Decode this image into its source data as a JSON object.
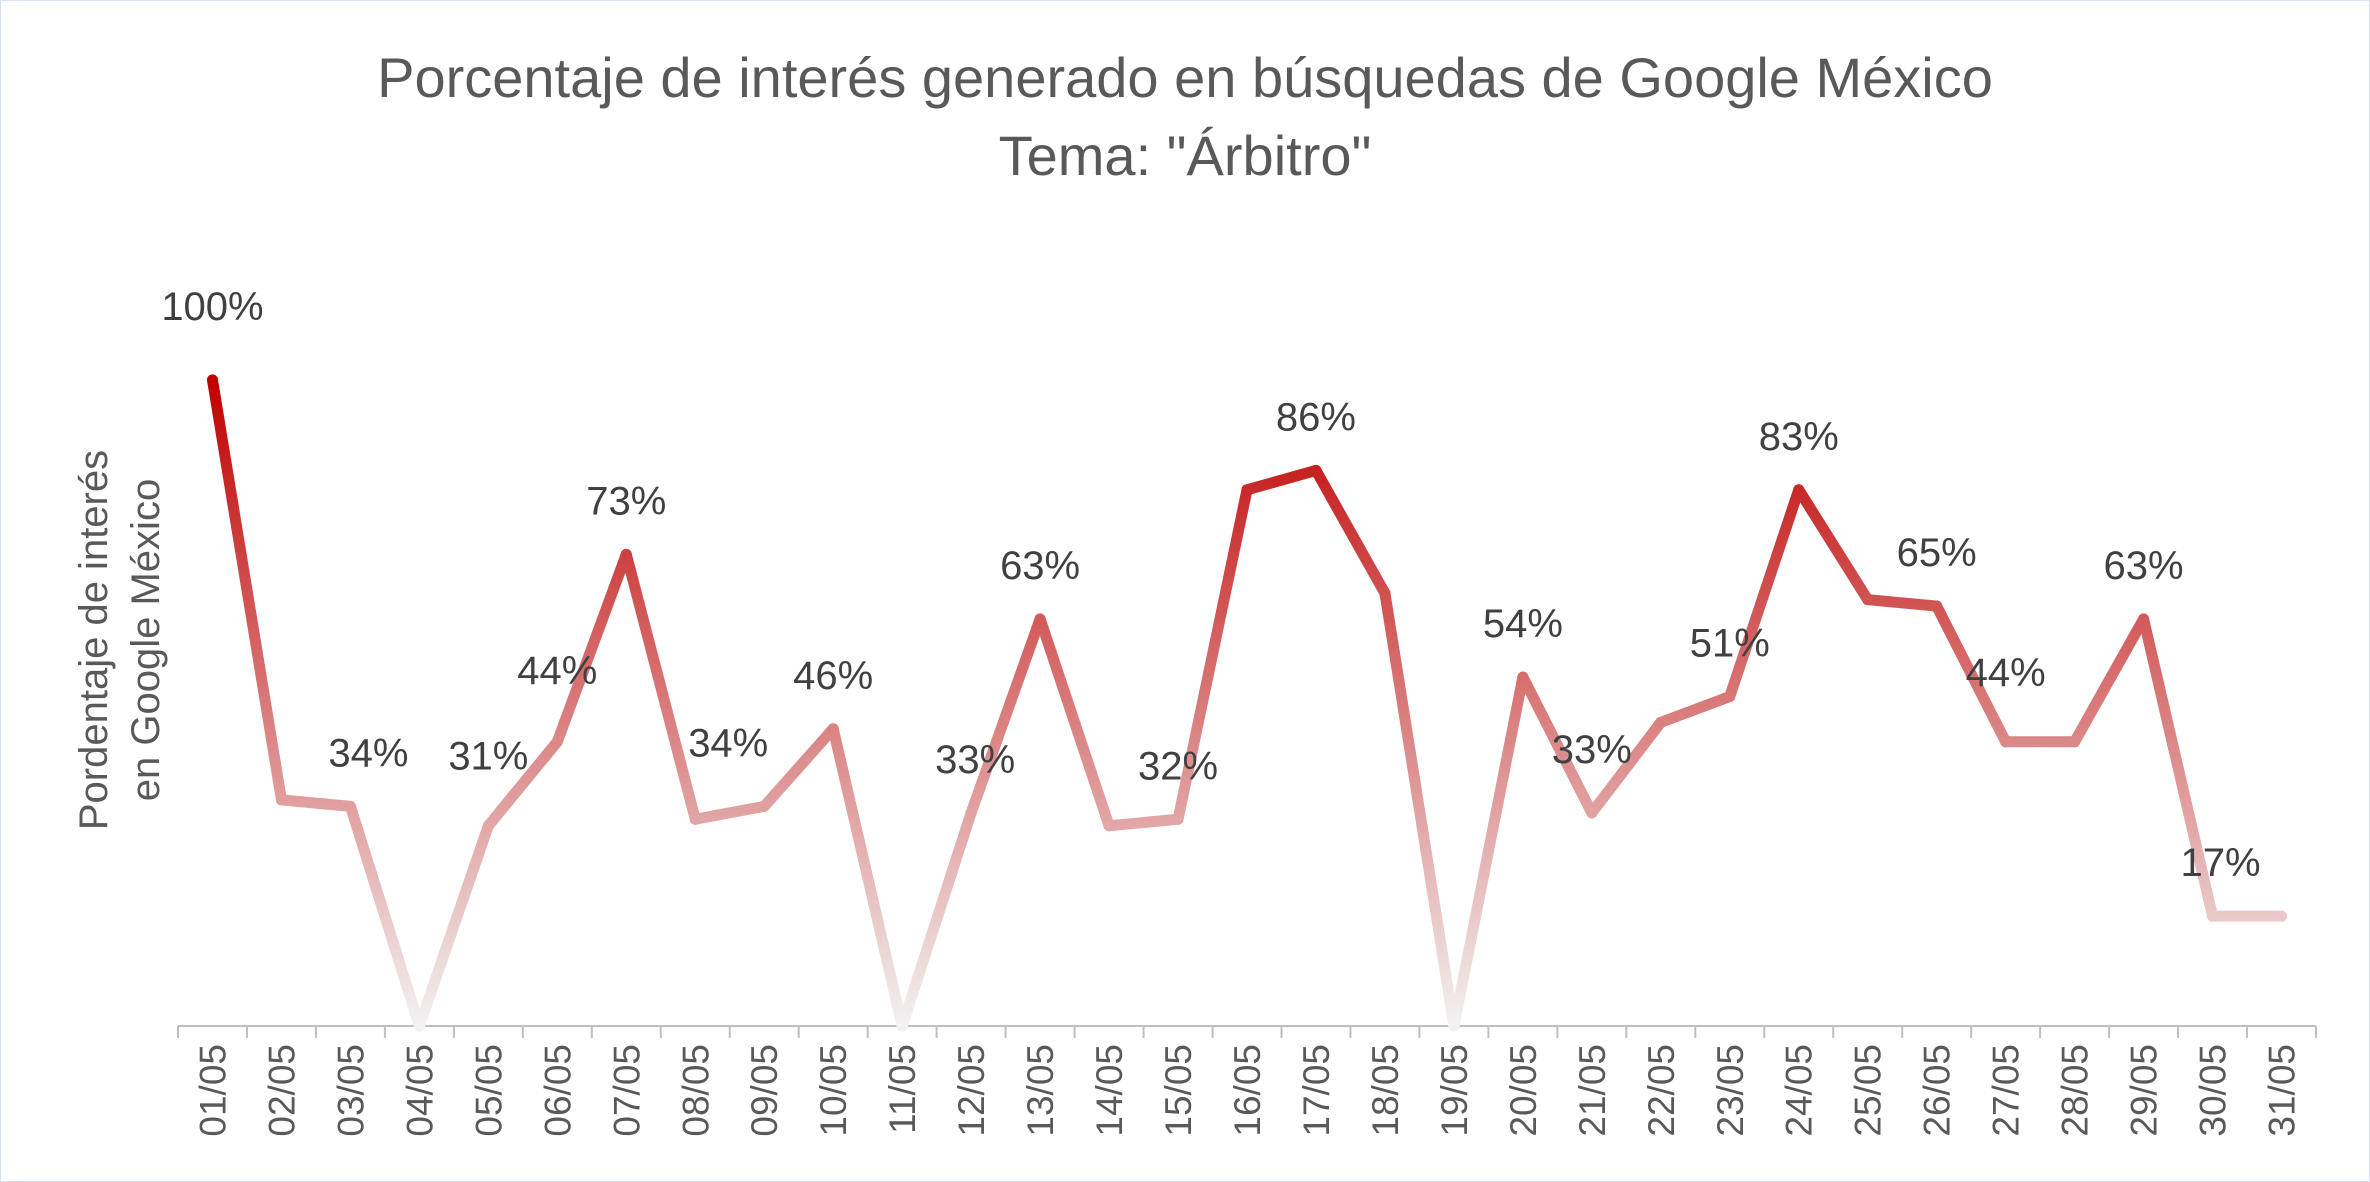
{
  "chart_data": {
    "type": "line",
    "title": "Porcentaje de interés generado en búsquedas de Google México",
    "subtitle": "Tema: \"Árbitro\"",
    "xlabel": "",
    "ylabel_lines": [
      "Pordentaje de interés",
      "en Google México"
    ],
    "ylim": [
      0,
      100
    ],
    "grid": false,
    "categories": [
      "01/05",
      "02/05",
      "03/05",
      "04/05",
      "05/05",
      "06/05",
      "07/05",
      "08/05",
      "09/05",
      "10/05",
      "11/05",
      "12/05",
      "13/05",
      "14/05",
      "15/05",
      "16/05",
      "17/05",
      "18/05",
      "19/05",
      "20/05",
      "21/05",
      "22/05",
      "23/05",
      "24/05",
      "25/05",
      "26/05",
      "27/05",
      "28/05",
      "29/05",
      "30/05",
      "31/05"
    ],
    "values": [
      100,
      35,
      34,
      0,
      31,
      44,
      73,
      32,
      34,
      46,
      0,
      33,
      63,
      31,
      32,
      83,
      86,
      67,
      0,
      54,
      33,
      47,
      51,
      83,
      66,
      65,
      44,
      44,
      63,
      17,
      17
    ],
    "data_labels": [
      {
        "index": 0,
        "text": "100%"
      },
      {
        "index": 2,
        "text": "34%"
      },
      {
        "index": 4,
        "text": "31%"
      },
      {
        "index": 5,
        "text": "44%"
      },
      {
        "index": 6,
        "text": "73%"
      },
      {
        "index": 8,
        "text": "34%"
      },
      {
        "index": 9,
        "text": "46%"
      },
      {
        "index": 11,
        "text": "33%"
      },
      {
        "index": 12,
        "text": "63%"
      },
      {
        "index": 14,
        "text": "32%"
      },
      {
        "index": 16,
        "text": "86%"
      },
      {
        "index": 19,
        "text": "54%"
      },
      {
        "index": 20,
        "text": "33%"
      },
      {
        "index": 22,
        "text": "51%"
      },
      {
        "index": 23,
        "text": "83%"
      },
      {
        "index": 25,
        "text": "65%"
      },
      {
        "index": 26,
        "text": "44%"
      },
      {
        "index": 28,
        "text": "63%"
      },
      {
        "index": 29,
        "text": "17%"
      }
    ],
    "colors": {
      "high": "#c00000",
      "low": "#f2f2f2",
      "axis": "#bfbfbf",
      "text": "#404040",
      "title": "#595959"
    }
  }
}
